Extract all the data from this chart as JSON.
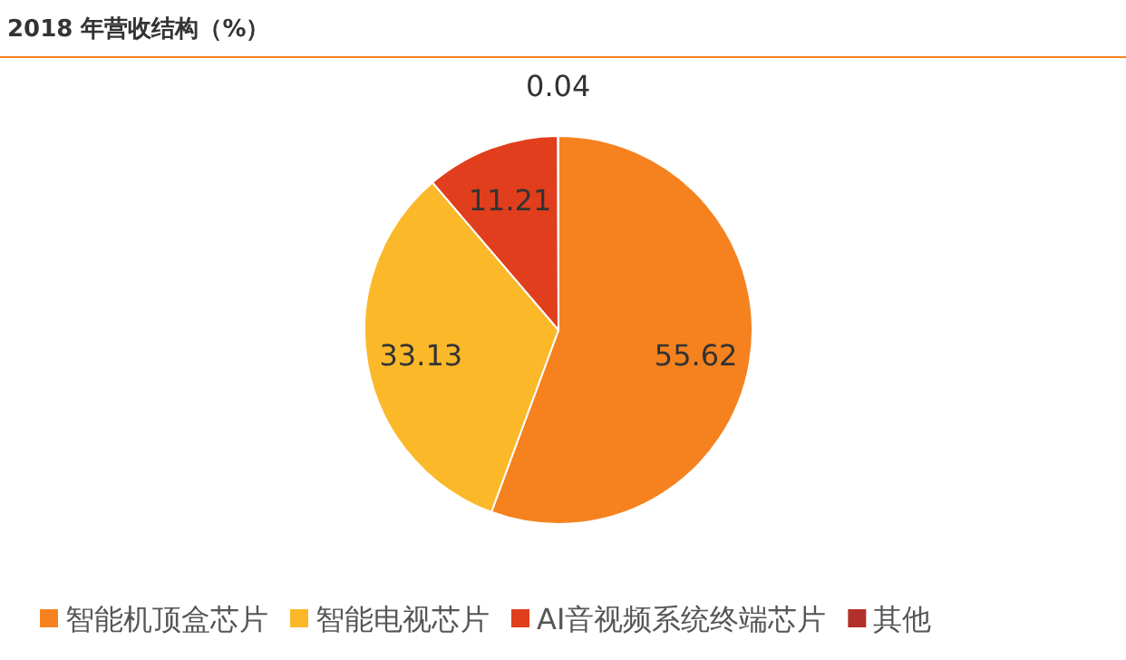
{
  "chart_data": {
    "type": "pie",
    "title": "2018 年营收结构（%）",
    "categories": [
      "智能机顶盒芯片",
      "智能电视芯片",
      "AI音视频系统终端芯片",
      "其他"
    ],
    "values": [
      55.62,
      33.13,
      11.21,
      0.04
    ],
    "colors": [
      "#f5821f",
      "#fbb829",
      "#e03e1c",
      "#b3302a"
    ],
    "data_labels": true,
    "legend": "bottom"
  }
}
